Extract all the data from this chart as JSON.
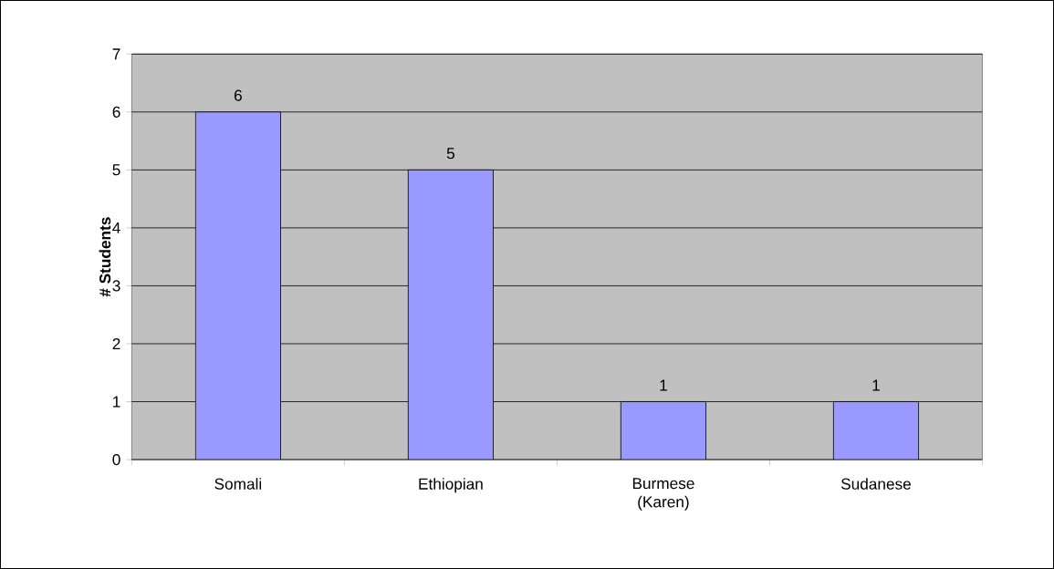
{
  "chart_data": {
    "type": "bar",
    "ylabel": "# Students",
    "categories": [
      "Somali",
      "Ethiopian",
      "Burmese (Karen)",
      "Sudanese"
    ],
    "values": [
      6,
      5,
      1,
      1
    ],
    "color": "#9999ff",
    "ylim": [
      0,
      7
    ],
    "yticks": [
      0,
      1,
      2,
      3,
      4,
      5,
      6,
      7
    ],
    "grid": "y",
    "data_labels": true
  }
}
